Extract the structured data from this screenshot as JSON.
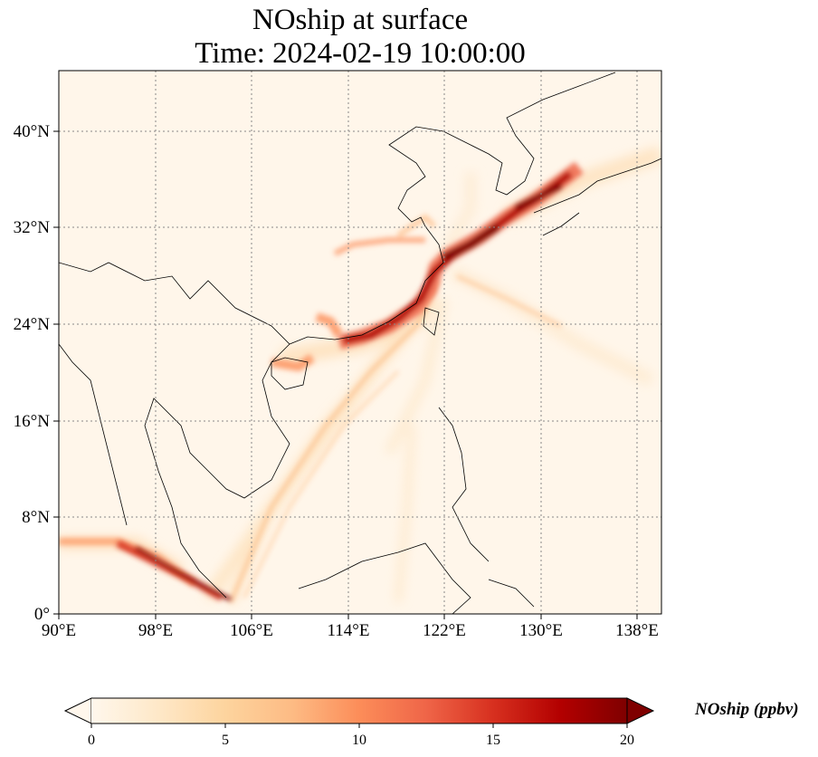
{
  "title": {
    "line1": "NOship at surface",
    "line2": "Time: 2024-02-19 10:00:00"
  },
  "map": {
    "lon_range": [
      90,
      140
    ],
    "lat_range": [
      0,
      45
    ],
    "lon_ticks": [
      "90°E",
      "98°E",
      "106°E",
      "114°E",
      "122°E",
      "130°E",
      "138°E"
    ],
    "lat_ticks": [
      "0°",
      "8°N",
      "16°N",
      "24°N",
      "32°N",
      "40°N"
    ],
    "gridlines": "dotted",
    "colormap": "OrRd"
  },
  "colorbar": {
    "label": "NOship (ppbv)",
    "ticks": [
      "0",
      "5",
      "10",
      "15",
      "20"
    ],
    "min": 0,
    "max": 20,
    "extend": "both",
    "colors": [
      "#fff7ec",
      "#fee8c8",
      "#fdd49e",
      "#fdbb84",
      "#fc8d59",
      "#ef6548",
      "#d7301f",
      "#b30000",
      "#7f0000"
    ]
  }
}
